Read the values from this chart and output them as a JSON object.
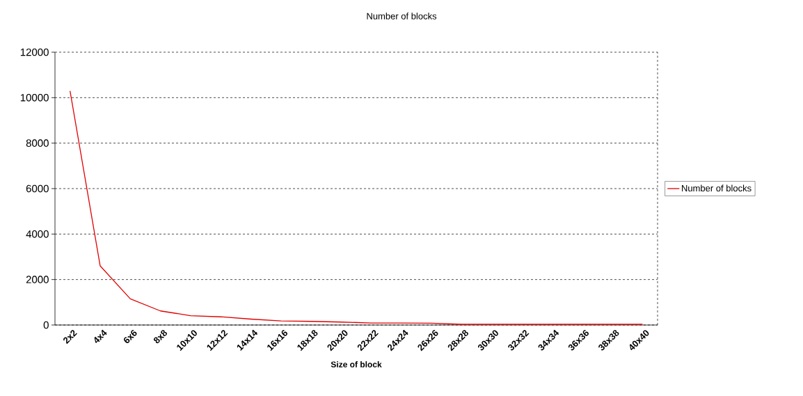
{
  "chart_data": {
    "type": "line",
    "title": "Number of blocks",
    "xlabel": "Size of block",
    "categories": [
      "2x2",
      "4x4",
      "6x6",
      "8x8",
      "10x10",
      "12x12",
      "14x14",
      "16x16",
      "18x18",
      "20x20",
      "22x22",
      "24x24",
      "26x26",
      "28x28",
      "30x30",
      "32x32",
      "34x34",
      "36x36",
      "38x38",
      "40x40"
    ],
    "series": [
      {
        "name": "Number of blocks",
        "color": "#e00000",
        "values": [
          10300,
          2600,
          1150,
          620,
          410,
          360,
          260,
          180,
          160,
          130,
          90,
          85,
          80,
          30,
          30,
          30,
          30,
          30,
          30,
          30
        ]
      }
    ],
    "ylim": [
      0,
      12000
    ],
    "yticks": [
      0,
      2000,
      4000,
      6000,
      8000,
      10000,
      12000
    ],
    "grid": "y",
    "legend": "right"
  }
}
